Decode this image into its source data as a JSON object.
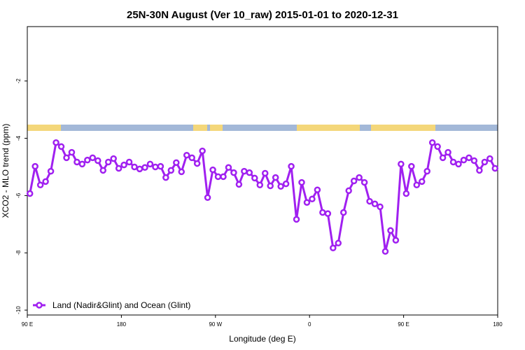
{
  "chart_data": {
    "type": "line",
    "title": "25N-30N August (Ver 10_raw)   2015-01-01 to 2020-12-31",
    "x_label": "Longitude (deg E)",
    "y_label": "XCO2 - MLO trend (ppm)",
    "xlim": [
      90,
      540
    ],
    "ylim": [
      -10.17,
      -0.1
    ],
    "xticks": [
      {
        "value": 90,
        "label": "90 E"
      },
      {
        "value": 180,
        "label": "180"
      },
      {
        "value": 270,
        "label": "90 W"
      },
      {
        "value": 360,
        "label": "0"
      },
      {
        "value": 450,
        "label": "90 E"
      },
      {
        "value": 540,
        "label": "180"
      }
    ],
    "yticks": [
      -2,
      -4,
      -6,
      -8,
      -10
    ],
    "legend": "lower left",
    "x": [
      92.5,
      97.5,
      102.5,
      107.5,
      112.5,
      117.5,
      122.5,
      127.5,
      132.5,
      137.5,
      142.5,
      147.5,
      152.5,
      157.5,
      162.5,
      167.5,
      172.5,
      177.5,
      182.5,
      187.5,
      192.5,
      197.5,
      202.5,
      207.5,
      212.5,
      217.5,
      222.5,
      227.5,
      232.5,
      237.5,
      242.5,
      247.5,
      252.5,
      257.5,
      262.5,
      267.5,
      272.5,
      277.5,
      282.5,
      287.5,
      292.5,
      297.5,
      302.5,
      307.5,
      312.5,
      317.5,
      322.5,
      327.5,
      332.5,
      337.5,
      342.5,
      347.5,
      352.5,
      357.5,
      362.5,
      367.5,
      372.5,
      377.5,
      382.5,
      387.5,
      392.5,
      397.5,
      402.5,
      407.5,
      412.5,
      417.5,
      422.5,
      427.5,
      432.5,
      437.5,
      442.5,
      447.5,
      452.5,
      457.5,
      462.5,
      467.5,
      472.5,
      477.5,
      482.5,
      487.5,
      492.5,
      497.5,
      502.5,
      507.5,
      512.5,
      517.5,
      522.5,
      527.5,
      532.5,
      537.5
    ],
    "series": [
      {
        "name": "Land (Nadir&Glint) and Ocean (Glint)",
        "color": "#a020f0",
        "values": [
          -5.93,
          -4.98,
          -5.63,
          -5.51,
          -5.15,
          -4.15,
          -4.29,
          -4.68,
          -4.49,
          -4.83,
          -4.9,
          -4.76,
          -4.68,
          -4.78,
          -5.12,
          -4.83,
          -4.71,
          -5.05,
          -4.93,
          -4.83,
          -5.0,
          -5.07,
          -5.02,
          -4.9,
          -5.0,
          -4.98,
          -5.37,
          -5.12,
          -4.85,
          -5.17,
          -4.59,
          -4.68,
          -4.88,
          -4.44,
          -6.07,
          -5.1,
          -5.34,
          -5.34,
          -5.02,
          -5.2,
          -5.61,
          -5.15,
          -5.2,
          -5.39,
          -5.63,
          -5.22,
          -5.66,
          -5.37,
          -5.68,
          -5.59,
          -4.98,
          -6.83,
          -5.54,
          -6.24,
          -6.12,
          -5.8,
          -6.59,
          -6.63,
          -7.83,
          -7.66,
          -6.59,
          -5.83,
          -5.49,
          -5.37,
          -5.54,
          -6.2,
          -6.29,
          -6.39,
          -7.95,
          -7.22,
          -7.56,
          -4.9,
          -5.93,
          -4.98,
          -5.63,
          -5.51,
          -5.15,
          -4.15,
          -4.29,
          -4.68,
          -4.49,
          -4.83,
          -4.9,
          -4.76,
          -4.68,
          -4.78,
          -5.12,
          -4.83,
          -4.71,
          -5.05
        ]
      }
    ]
  }
}
